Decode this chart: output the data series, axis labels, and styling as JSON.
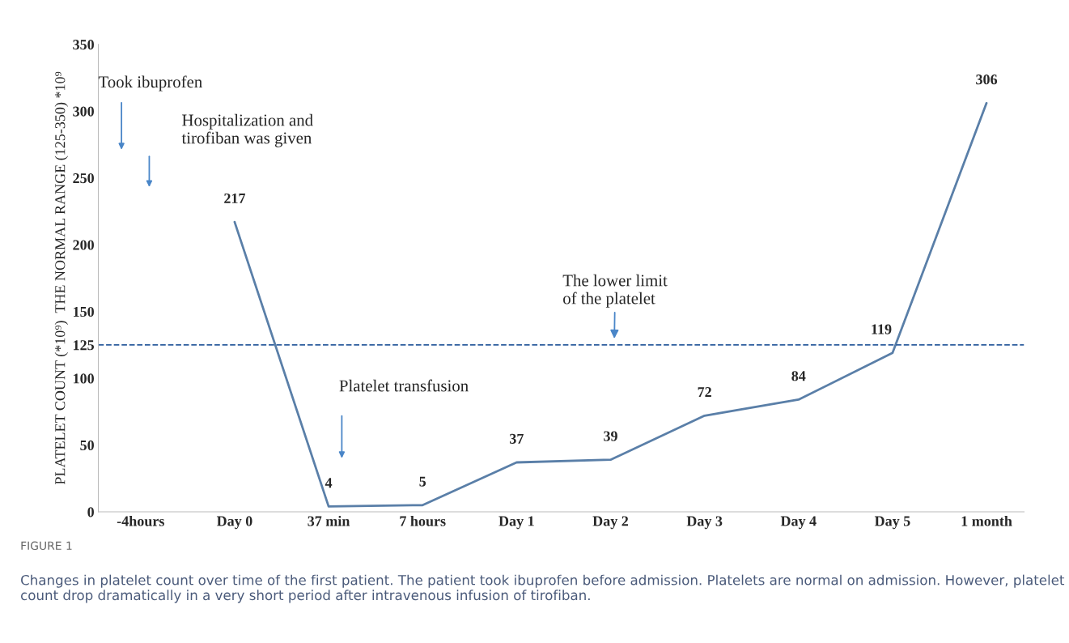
{
  "chart_data": {
    "type": "line",
    "categories": [
      "-4hours",
      "Day 0",
      "37 min",
      "7 hours",
      "Day 1",
      "Day 2",
      "Day 3",
      "Day 4",
      "Day 5",
      "1 month"
    ],
    "series": [
      {
        "color": "#5a7fa8",
        "values": [
          null,
          217,
          4,
          5,
          37,
          39,
          72,
          84,
          119,
          306
        ]
      }
    ],
    "ylabel": "PLATELET COUNT (*10⁹)  THE NORMAL RANGE (125-350) *10⁹",
    "ylim": [
      0,
      350
    ],
    "yticks": [
      0,
      50,
      100,
      125,
      150,
      200,
      250,
      300,
      350
    ],
    "data_labels": true,
    "grid": false,
    "marker": "none",
    "line_style": "solid",
    "ref_lines": [
      {
        "axis": "y",
        "value": 125,
        "label": "The lower limit\nof the platelet",
        "color": "#2e5e9e",
        "line_style": "dashed"
      }
    ],
    "annotations": [
      "Took ibuprofen",
      "Hospitalization and\ntirofiban was given",
      "Platelet transfusion",
      "FIGURE 1",
      "Changes in platelet count over time of the first patient. The patient took ibuprofen before admission. Platelets are normal on admission. However, platelet count drop dramatically in a very short period after intravenous infusion of tirofiban."
    ]
  }
}
